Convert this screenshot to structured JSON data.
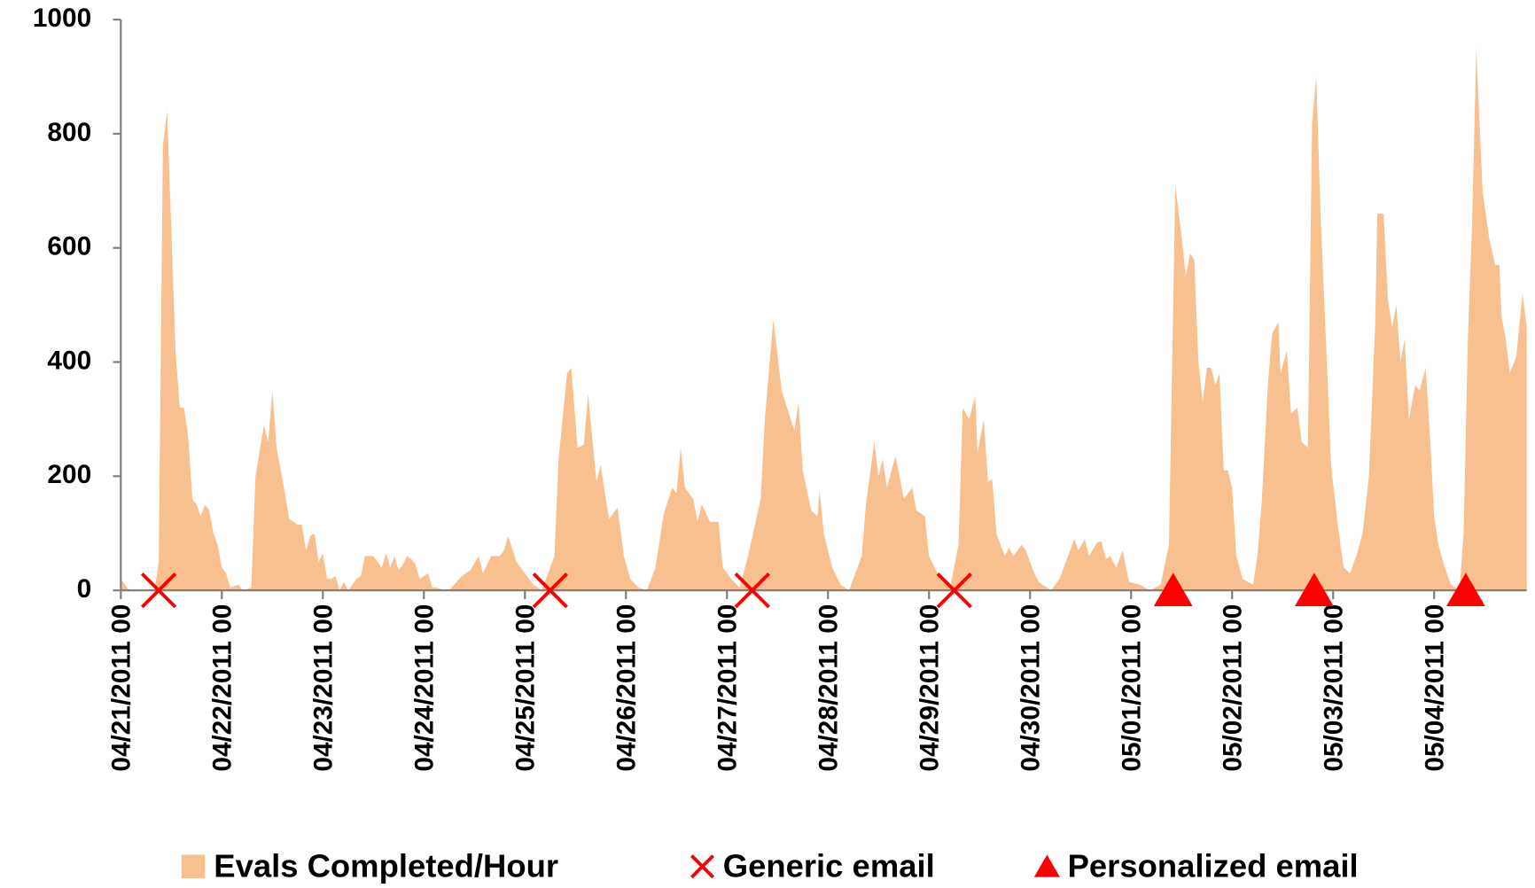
{
  "chart_data": {
    "type": "area",
    "xlim": [
      0,
      334
    ],
    "xticks": [
      {
        "value": 0,
        "label": "04/21/2011 00"
      },
      {
        "value": 24,
        "label": "04/22/2011 00"
      },
      {
        "value": 48,
        "label": "04/23/2011 00"
      },
      {
        "value": 72,
        "label": "04/24/2011 00"
      },
      {
        "value": 96,
        "label": "04/25/2011 00"
      },
      {
        "value": 120,
        "label": "04/26/2011 00"
      },
      {
        "value": 144,
        "label": "04/27/2011 00"
      },
      {
        "value": 168,
        "label": "04/28/2011 00"
      },
      {
        "value": 192,
        "label": "04/29/2011 00"
      },
      {
        "value": 216,
        "label": "04/30/2011 00"
      },
      {
        "value": 240,
        "label": "05/01/2011 00"
      },
      {
        "value": 264,
        "label": "05/02/2011 00"
      },
      {
        "value": 288,
        "label": "05/03/2011 00"
      },
      {
        "value": 312,
        "label": "05/04/2011 00"
      }
    ],
    "ylim": [
      0,
      1000
    ],
    "yticks": [
      0,
      200,
      400,
      600,
      800,
      1000
    ],
    "series": [
      {
        "name": "Evals Completed/Hour",
        "color": "#f9c08f",
        "marker": "area",
        "x": [
          0,
          2,
          8,
          9,
          10,
          11,
          13,
          14,
          15,
          16,
          17,
          18,
          19,
          20,
          21,
          22,
          23,
          24,
          25,
          26,
          28,
          29,
          31,
          32,
          34,
          35,
          36,
          37,
          39,
          40,
          41,
          42,
          43,
          44,
          45,
          46,
          47,
          48,
          49,
          50,
          51,
          52,
          53,
          54,
          55,
          56,
          57,
          58,
          59,
          60,
          61,
          62,
          63,
          64,
          65,
          66,
          67,
          68,
          69,
          70,
          71,
          72,
          73,
          74,
          75,
          77,
          78,
          81,
          83,
          85,
          86,
          88,
          90,
          91,
          92,
          94,
          96,
          98,
          100,
          103,
          104,
          106,
          107,
          108.5,
          110,
          111,
          113,
          114,
          115,
          116,
          118,
          119.5,
          121,
          123,
          125,
          127,
          129,
          131,
          132,
          133,
          134,
          136,
          137,
          138,
          140,
          142,
          143,
          145,
          147,
          149,
          152,
          153,
          155,
          157,
          160,
          161,
          162,
          164,
          165.5,
          166,
          167,
          169,
          171,
          173,
          176,
          177,
          179,
          180,
          181,
          182,
          184,
          185,
          186,
          188,
          189,
          191,
          192,
          194,
          196,
          197,
          199,
          200,
          201.5,
          203,
          203.5,
          205,
          206,
          207,
          208,
          210,
          211,
          212,
          214,
          215,
          217,
          218,
          220,
          221,
          223,
          225,
          226.5,
          227.5,
          229,
          230,
          232,
          233,
          234,
          235,
          236.5,
          238,
          239.5,
          242,
          244.5,
          247,
          249,
          250.5,
          252,
          253,
          254,
          255,
          256,
          257,
          258,
          259,
          260,
          261,
          262,
          263,
          264,
          265,
          266.5,
          269,
          270,
          271,
          272.5,
          273.5,
          275,
          275.5,
          277,
          278,
          279.5,
          280.5,
          282,
          283,
          284,
          285,
          286.5,
          287.5,
          289,
          290.5,
          292,
          293.5,
          295,
          296.5,
          298,
          298.5,
          300,
          301,
          302,
          303,
          304,
          305,
          306,
          307.5,
          308.5,
          310,
          311,
          312,
          313,
          314.5,
          316,
          318,
          319,
          320,
          321,
          322,
          323.5,
          325,
          326.5,
          327.5,
          328,
          329,
          330,
          331.5,
          333,
          334
        ],
        "values": [
          20,
          0,
          0,
          50,
          780,
          840,
          420,
          320,
          320,
          270,
          160,
          150,
          130,
          150,
          140,
          100,
          80,
          40,
          30,
          5,
          10,
          0,
          5,
          200,
          290,
          260,
          350,
          250,
          170,
          125,
          120,
          115,
          115,
          70,
          95,
          100,
          50,
          65,
          20,
          20,
          25,
          0,
          15,
          0,
          10,
          20,
          25,
          60,
          60,
          60,
          50,
          40,
          65,
          40,
          60,
          35,
          45,
          60,
          55,
          45,
          20,
          25,
          30,
          5,
          5,
          0,
          0,
          25,
          35,
          60,
          30,
          60,
          60,
          70,
          95,
          50,
          30,
          10,
          0,
          60,
          230,
          380,
          390,
          250,
          255,
          345,
          190,
          220,
          170,
          125,
          145,
          60,
          20,
          5,
          0,
          40,
          135,
          180,
          170,
          250,
          180,
          160,
          120,
          150,
          120,
          120,
          40,
          20,
          5,
          60,
          160,
          300,
          475,
          350,
          280,
          330,
          210,
          140,
          130,
          175,
          100,
          40,
          10,
          0,
          60,
          150,
          260,
          200,
          230,
          180,
          235,
          200,
          160,
          180,
          140,
          130,
          60,
          30,
          10,
          5,
          80,
          320,
          300,
          340,
          240,
          300,
          190,
          195,
          100,
          60,
          75,
          60,
          80,
          70,
          30,
          15,
          5,
          0,
          20,
          60,
          90,
          70,
          90,
          60,
          85,
          85,
          55,
          60,
          40,
          70,
          15,
          10,
          0,
          10,
          80,
          710,
          620,
          550,
          590,
          580,
          400,
          330,
          390,
          390,
          360,
          380,
          210,
          210,
          180,
          60,
          20,
          10,
          60,
          150,
          360,
          450,
          470,
          380,
          420,
          310,
          320,
          260,
          250,
          820,
          900,
          660,
          400,
          220,
          120,
          40,
          30,
          60,
          100,
          200,
          470,
          660,
          660,
          510,
          460,
          500,
          400,
          440,
          300,
          360,
          350,
          390,
          270,
          130,
          80,
          40,
          10,
          0,
          100,
          440,
          640,
          950,
          700,
          620,
          570,
          570,
          480,
          440,
          380,
          410,
          520,
          460
        ]
      },
      {
        "name": "Generic email",
        "color": "#ff0000",
        "marker": "x",
        "x": [
          9,
          102,
          150,
          198
        ],
        "values": [
          0,
          0,
          0,
          0
        ]
      },
      {
        "name": "Personalized email",
        "color": "#ff0000",
        "marker": "triangle",
        "x": [
          250,
          283.5,
          319.5
        ],
        "values": [
          0,
          0,
          0
        ]
      }
    ]
  }
}
